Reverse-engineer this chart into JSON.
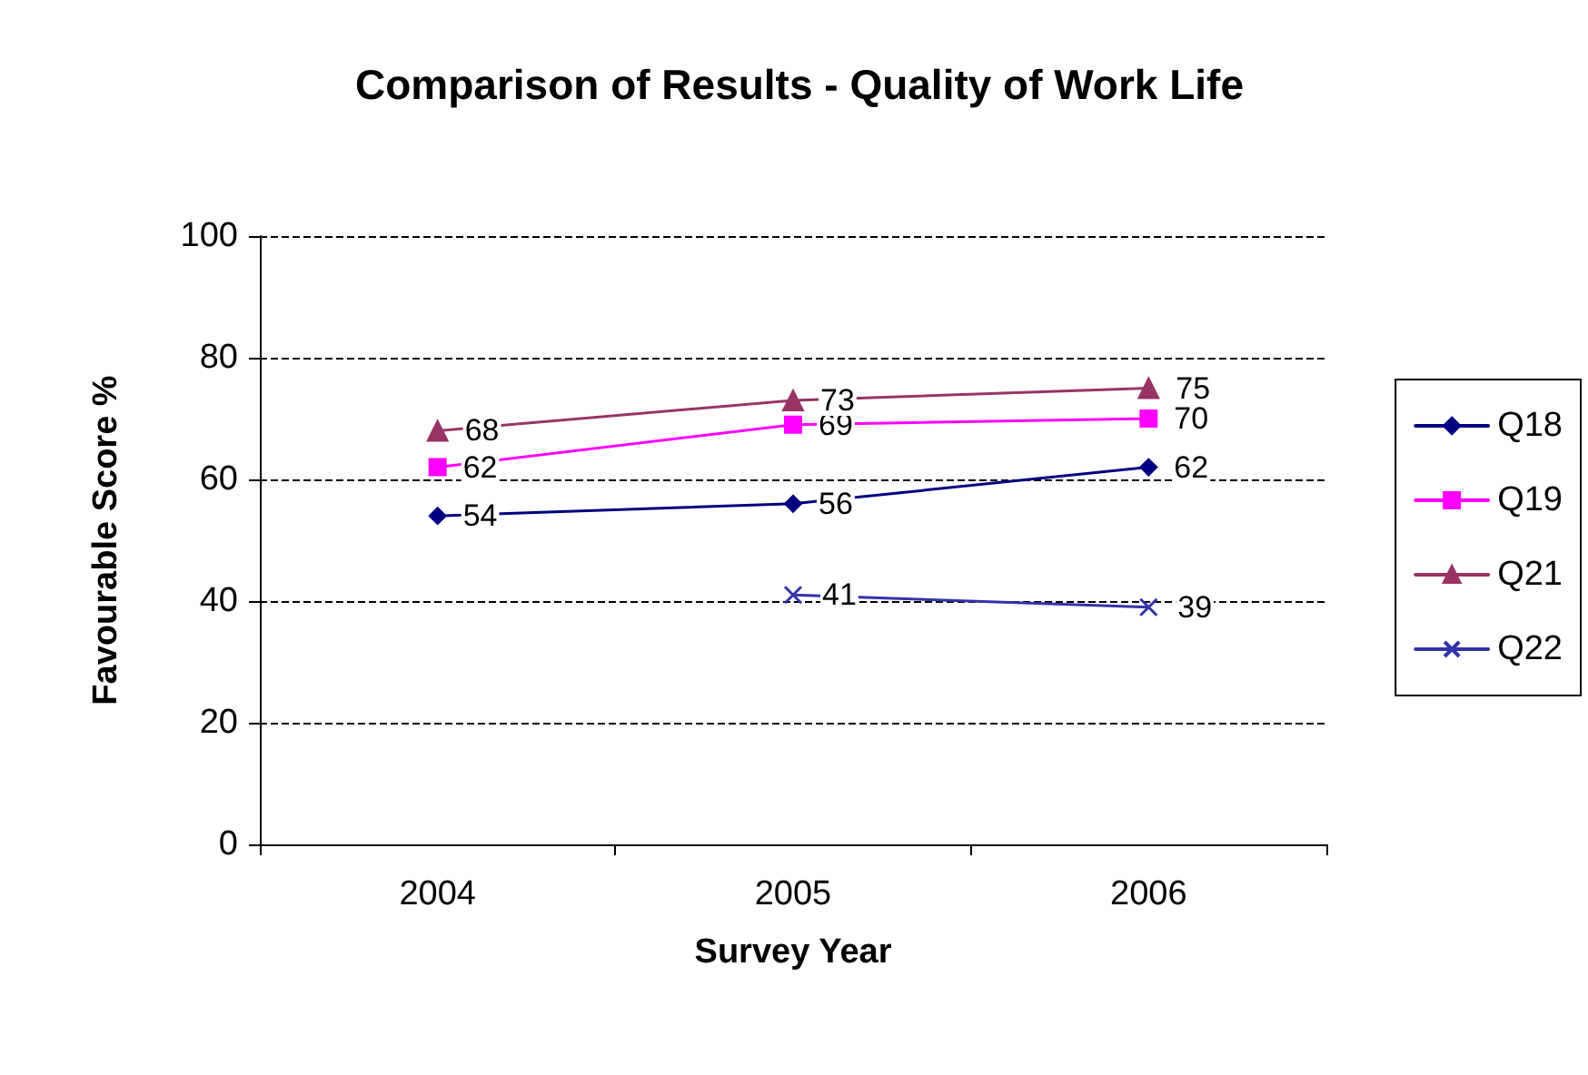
{
  "chart_data": {
    "type": "line",
    "title": "Comparison of Results - Quality of Work Life",
    "xlabel": "Survey Year",
    "ylabel": "Favourable Score %",
    "categories": [
      "2004",
      "2005",
      "2006"
    ],
    "series": [
      {
        "name": "Q18",
        "color": "#000080",
        "marker": "diamond",
        "values": [
          54,
          56,
          62
        ]
      },
      {
        "name": "Q19",
        "color": "#ff00ff",
        "marker": "square",
        "values": [
          62,
          69,
          70
        ]
      },
      {
        "name": "Q21",
        "color": "#993366",
        "marker": "triangle",
        "values": [
          68,
          73,
          75
        ]
      },
      {
        "name": "Q22",
        "color": "#3333aa",
        "marker": "cross",
        "values": [
          null,
          41,
          39
        ]
      }
    ],
    "ylim": [
      0,
      100
    ],
    "yticks": [
      0,
      20,
      40,
      60,
      80,
      100
    ],
    "grid": "y",
    "legend": "right",
    "data_labels": true,
    "line_style": "solid"
  }
}
